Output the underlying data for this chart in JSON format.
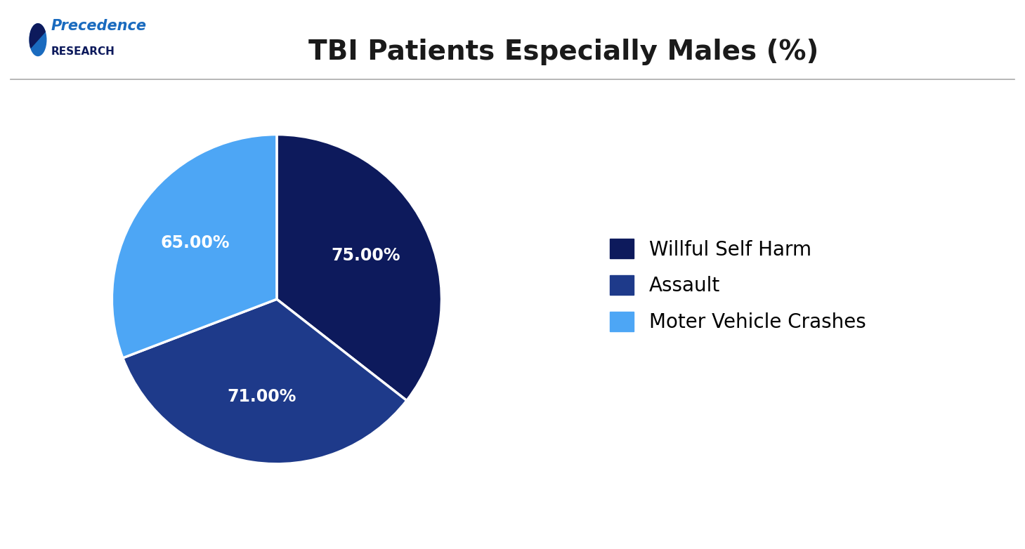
{
  "title": "TBI Patients Especially Males (%)",
  "slices": [
    75.0,
    71.0,
    65.0
  ],
  "labels": [
    "75.00%",
    "71.00%",
    "65.00%"
  ],
  "colors": [
    "#0d1a5c",
    "#1e3a8a",
    "#4da6f5"
  ],
  "legend_labels": [
    "Willful Self Harm",
    "Assault",
    "Moter Vehicle Crashes"
  ],
  "legend_colors": [
    "#0d1a5c",
    "#1e3a8a",
    "#4da6f5"
  ],
  "startangle": 90,
  "background_color": "#ffffff",
  "title_fontsize": 28,
  "label_fontsize": 17,
  "legend_fontsize": 20
}
